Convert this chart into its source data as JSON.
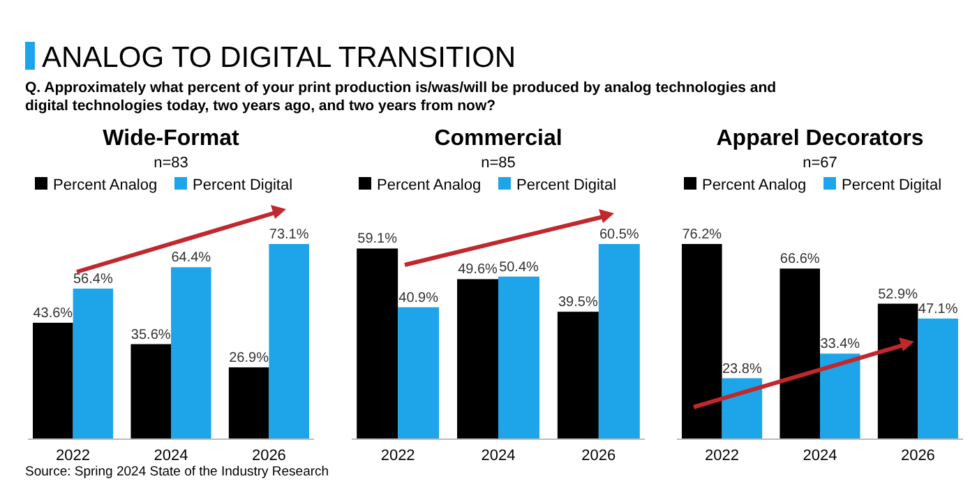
{
  "chart_data": [
    {
      "type": "bar",
      "title": "Wide-Format",
      "subtitle": "n=83",
      "categories": [
        "2022",
        "2024",
        "2026"
      ],
      "series": [
        {
          "name": "Percent Analog",
          "color": "#000000",
          "values": [
            43.6,
            35.6,
            26.9
          ],
          "value_labels": [
            "43.6%",
            "35.6%",
            "26.9%"
          ]
        },
        {
          "name": "Percent Digital",
          "color": "#1ea5e9",
          "values": [
            56.4,
            64.4,
            73.1
          ],
          "value_labels": [
            "56.4%",
            "64.4%",
            "73.1%"
          ]
        }
      ],
      "legend": "top",
      "annotations": [
        "ANALOG TO DIGITAL TRANSITION",
        "Q. Approximately what percent of your print production is/was/will be produced by analog technologies and digital technologies today, two years ago, and two years from now?"
      ]
    },
    {
      "type": "bar",
      "title": "Commercial",
      "subtitle": "n=85",
      "categories": [
        "2022",
        "2024",
        "2026"
      ],
      "series": [
        {
          "name": "Percent Analog",
          "color": "#000000",
          "values": [
            59.1,
            49.6,
            39.5
          ],
          "value_labels": [
            "59.1%",
            "49.6%",
            "39.5%"
          ]
        },
        {
          "name": "Percent Digital",
          "color": "#1ea5e9",
          "values": [
            40.9,
            50.4,
            60.5
          ],
          "value_labels": [
            "40.9%",
            "50.4%",
            "60.5%"
          ]
        }
      ],
      "legend": "top"
    },
    {
      "type": "bar",
      "title": "Apparel Decorators",
      "subtitle": "n=67",
      "categories": [
        "2022",
        "2024",
        "2026"
      ],
      "series": [
        {
          "name": "Percent Analog",
          "color": "#000000",
          "values": [
            76.2,
            66.6,
            52.9
          ],
          "value_labels": [
            "76.2%",
            "66.6%",
            "52.9%"
          ]
        },
        {
          "name": "Percent Digital",
          "color": "#1ea5e9",
          "values": [
            23.8,
            33.4,
            47.1
          ],
          "value_labels": [
            "23.8%",
            "33.4%",
            "47.1%"
          ]
        }
      ],
      "legend": "top",
      "annotations": [
        "Source: Spring  2024 State of the Industry Research"
      ]
    }
  ]
}
